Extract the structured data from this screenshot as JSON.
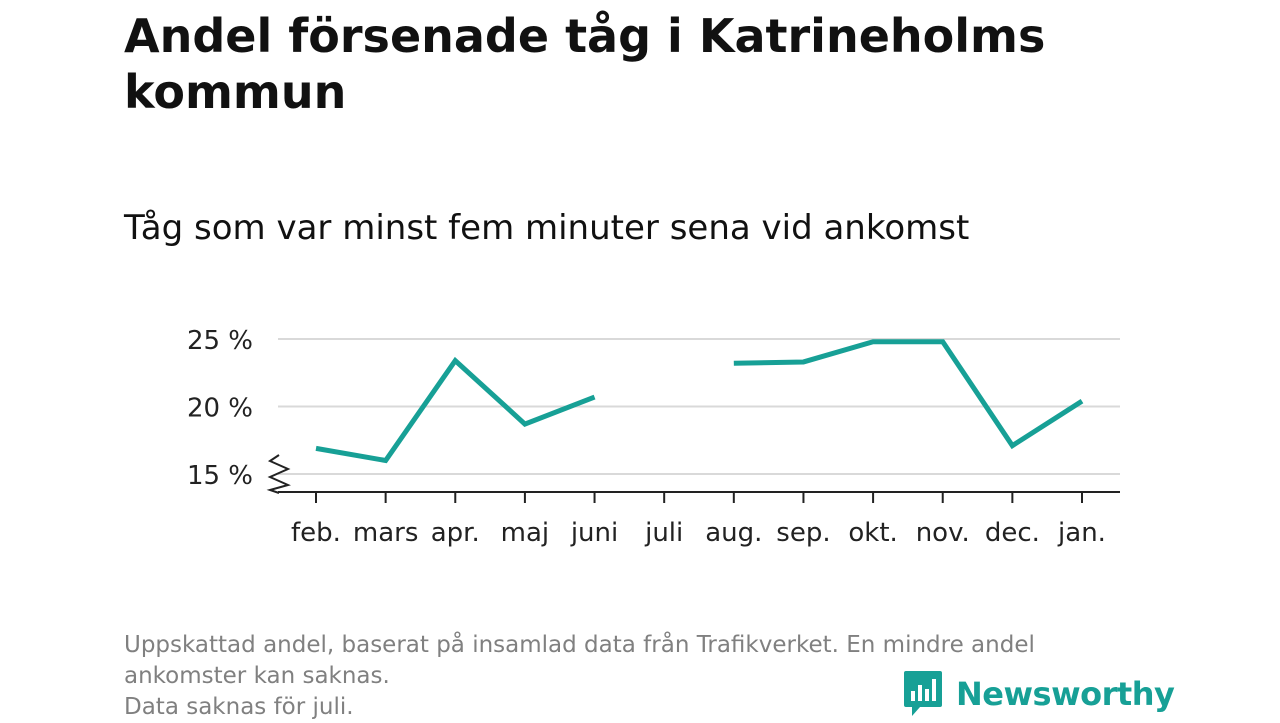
{
  "title": "Andel försenade tåg i Katrineholms kommun",
  "subtitle": "Tåg som var minst fem minuter sena vid ankomst",
  "footnote": {
    "line1": "Uppskattad andel, baserat på insamlad data från Trafikverket. En mindre andel",
    "line2": "ankomster kan saknas.",
    "line3": "Data saknas för juli."
  },
  "brand": {
    "name": "Newsworthy",
    "color": "#17a096",
    "icon": "newsworthy-logo-icon"
  },
  "chart_data": {
    "type": "line",
    "categories": [
      "feb.",
      "mars",
      "apr.",
      "maj",
      "juni",
      "juli",
      "aug.",
      "sep.",
      "okt.",
      "nov.",
      "dec.",
      "jan."
    ],
    "series": [
      {
        "values": [
          16.9,
          16.0,
          23.4,
          18.7,
          20.7,
          null,
          23.2,
          23.3,
          24.8,
          24.8,
          17.1,
          20.4
        ],
        "color": "#17a096"
      }
    ],
    "yticks": [
      15,
      20,
      25
    ],
    "ytick_labels": [
      "15 %",
      "20 %",
      "25 %"
    ],
    "ylim": [
      15,
      26
    ],
    "y_axis_break": true,
    "grid": true,
    "xlabel": "",
    "ylabel": ""
  }
}
